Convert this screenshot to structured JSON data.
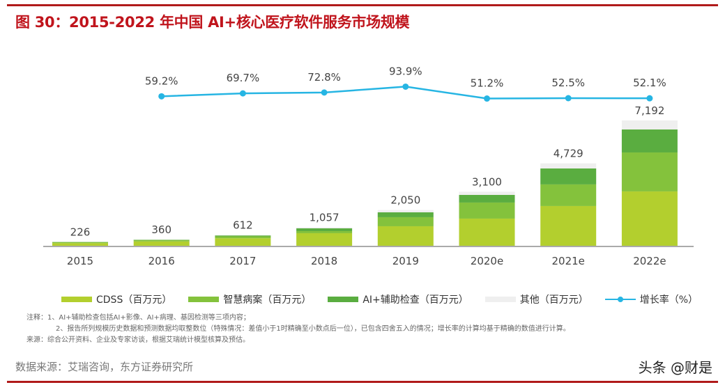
{
  "title": "图 30：2015-2022 年中国 AI+核心医疗软件服务市场规模",
  "chart_data": {
    "type": "bar",
    "stacked": true,
    "categories": [
      "2015",
      "2016",
      "2017",
      "2018",
      "2019",
      "2020e",
      "2021e",
      "2022e"
    ],
    "series": [
      {
        "name": "CDSS（百万元）",
        "color": "#b3cf2e",
        "values": [
          150,
          250,
          430,
          720,
          1120,
          1560,
          2280,
          3120
        ]
      },
      {
        "name": "智慧病案（百万元）",
        "color": "#84c23c",
        "values": [
          60,
          80,
          110,
          120,
          520,
          920,
          1240,
          2235
        ]
      },
      {
        "name": "AI+辅助检查（百万元）",
        "color": "#5aad40",
        "values": [
          10,
          20,
          52,
          160,
          280,
          437,
          915,
          1318
        ]
      },
      {
        "name": "其他（百万元）",
        "color": "#efefef",
        "values": [
          6,
          10,
          20,
          57,
          130,
          183,
          294,
          519
        ]
      }
    ],
    "totals": [
      "226",
      "360",
      "612",
      "1,057",
      "2,050",
      "3,100",
      "4,729",
      "7,192"
    ],
    "line": {
      "name": "增长率（%）",
      "color": "#26b5e3",
      "values": [
        59.2,
        69.7,
        72.8,
        93.9,
        51.2,
        52.5,
        52.1
      ],
      "labels": [
        "59.2%",
        "69.7%",
        "72.8%",
        "93.9%",
        "51.2%",
        "52.5%",
        "52.1%"
      ]
    },
    "grid": false,
    "legend_position": "bottom"
  },
  "notes": [
    "注释：1、AI+辅助检查包括AI+影像、AI+病理、基因检测等三项内容；",
    "2、报告所列规模历史数据和预测数据均取整数位（特殊情况：差值小于1时精确至小数点后一位），已包含四舍五入的情况；增长率的计算均基于精确的数值进行计算。",
    "来源：综合公开资料、企业及专家访谈，根据艾瑞统计模型核算及预估。"
  ],
  "source": "数据来源：艾瑞咨询，东方证券研究所",
  "watermark": "头条 @财是"
}
